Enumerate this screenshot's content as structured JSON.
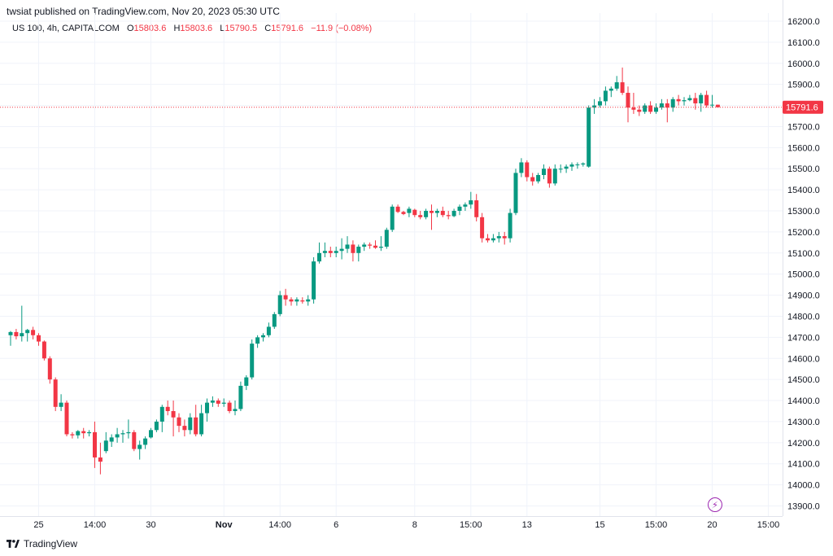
{
  "header": {
    "published": "twsiat published on TradingView.com, Nov 20, 2023 05:30 UTC",
    "symbol": "US 100, 4h, CAPITALCOM",
    "open_label": "O",
    "open": "15803.6",
    "high_label": "H",
    "high": "15803.6",
    "low_label": "L",
    "low": "15790.5",
    "close_label": "C",
    "close": "15791.6",
    "change": "−11.9 (−0.08%)"
  },
  "brand": {
    "name": "TradingView",
    "logo_icon": "tradingview-logo-icon"
  },
  "bolt_icon": "lightning-icon",
  "colors": {
    "up": "#089981",
    "down": "#f23645",
    "grid": "#f0f3fa",
    "price_line": "#f23645",
    "accent": "#9c27b0"
  },
  "chart_data": {
    "type": "candlestick",
    "title": "",
    "xlabel": "",
    "ylabel": "",
    "ylim": [
      13880,
      16220
    ],
    "y_ticks": [
      13900,
      14000,
      14100,
      14200,
      14300,
      14400,
      14500,
      14600,
      14700,
      14800,
      14900,
      15000,
      15100,
      15200,
      15300,
      15400,
      15500,
      15600,
      15700,
      15800,
      15900,
      16000,
      16100,
      16200
    ],
    "y_tick_labels": [
      "13900.0",
      "14000.0",
      "14100.0",
      "14200.0",
      "14300.0",
      "14400.0",
      "14500.0",
      "14600.0",
      "14700.0",
      "14800.0",
      "14900.0",
      "15000.0",
      "15100.0",
      "15200.0",
      "15300.0",
      "15400.0",
      "15500.0",
      "15600.0",
      "15700.0",
      "15800.0",
      "15900.0",
      "16000.0",
      "16100.0",
      "16200.0"
    ],
    "x_ticks": [
      {
        "label": "25",
        "index": 5,
        "bold": false
      },
      {
        "label": "14:00",
        "index": 15,
        "bold": false
      },
      {
        "label": "30",
        "index": 25,
        "bold": false
      },
      {
        "label": "Nov",
        "index": 38,
        "bold": true
      },
      {
        "label": "14:00",
        "index": 48,
        "bold": false
      },
      {
        "label": "6",
        "index": 58,
        "bold": false
      },
      {
        "label": "8",
        "index": 72,
        "bold": false
      },
      {
        "label": "15:00",
        "index": 82,
        "bold": false
      },
      {
        "label": "13",
        "index": 92,
        "bold": false
      },
      {
        "label": "15",
        "index": 105,
        "bold": false
      },
      {
        "label": "15:00",
        "index": 115,
        "bold": false
      },
      {
        "label": "20",
        "index": 125,
        "bold": false
      },
      {
        "label": "15:00",
        "index": 135,
        "bold": false
      }
    ],
    "last_price": 15791.6,
    "last_price_label": "15791.6",
    "candles": [
      [
        14710,
        14730,
        14660,
        14725
      ],
      [
        14725,
        14740,
        14690,
        14705
      ],
      [
        14705,
        14850,
        14680,
        14720
      ],
      [
        14720,
        14740,
        14680,
        14735
      ],
      [
        14735,
        14750,
        14690,
        14710
      ],
      [
        14710,
        14720,
        14660,
        14680
      ],
      [
        14680,
        14685,
        14590,
        14600
      ],
      [
        14600,
        14610,
        14480,
        14500
      ],
      [
        14500,
        14510,
        14350,
        14370
      ],
      [
        14370,
        14430,
        14350,
        14390
      ],
      [
        14390,
        14400,
        14230,
        14240
      ],
      [
        14240,
        14250,
        14220,
        14235
      ],
      [
        14235,
        14260,
        14220,
        14255
      ],
      [
        14255,
        14270,
        14220,
        14245
      ],
      [
        14245,
        14260,
        14230,
        14250
      ],
      [
        14250,
        14300,
        14080,
        14130
      ],
      [
        14130,
        14200,
        14050,
        14110
      ],
      [
        14160,
        14250,
        14150,
        14210
      ],
      [
        14205,
        14240,
        14180,
        14225
      ],
      [
        14225,
        14270,
        14200,
        14240
      ],
      [
        14240,
        14260,
        14200,
        14245
      ],
      [
        14245,
        14310,
        14220,
        14250
      ],
      [
        14250,
        14260,
        14160,
        14170
      ],
      [
        14170,
        14210,
        14120,
        14190
      ],
      [
        14190,
        14230,
        14170,
        14220
      ],
      [
        14225,
        14270,
        14220,
        14260
      ],
      [
        14260,
        14310,
        14250,
        14300
      ],
      [
        14300,
        14380,
        14250,
        14370
      ],
      [
        14370,
        14400,
        14330,
        14350
      ],
      [
        14350,
        14400,
        14230,
        14320
      ],
      [
        14320,
        14340,
        14250,
        14280
      ],
      [
        14280,
        14310,
        14230,
        14260
      ],
      [
        14260,
        14340,
        14240,
        14320
      ],
      [
        14320,
        14380,
        14230,
        14240
      ],
      [
        14240,
        14380,
        14230,
        14340
      ],
      [
        14340,
        14410,
        14300,
        14390
      ],
      [
        14390,
        14420,
        14370,
        14400
      ],
      [
        14400,
        14410,
        14370,
        14385
      ],
      [
        14385,
        14410,
        14370,
        14390
      ],
      [
        14390,
        14400,
        14340,
        14350
      ],
      [
        14350,
        14400,
        14330,
        14360
      ],
      [
        14360,
        14490,
        14350,
        14470
      ],
      [
        14470,
        14520,
        14450,
        14510
      ],
      [
        14510,
        14690,
        14500,
        14670
      ],
      [
        14670,
        14710,
        14650,
        14700
      ],
      [
        14700,
        14720,
        14680,
        14710
      ],
      [
        14710,
        14770,
        14700,
        14750
      ],
      [
        14750,
        14820,
        14740,
        14810
      ],
      [
        14810,
        14920,
        14800,
        14900
      ],
      [
        14900,
        14930,
        14850,
        14880
      ],
      [
        14880,
        14890,
        14850,
        14870
      ],
      [
        14870,
        14890,
        14850,
        14880
      ],
      [
        14875,
        14890,
        14860,
        14870
      ],
      [
        14870,
        14900,
        14850,
        14880
      ],
      [
        14880,
        15080,
        14860,
        15060
      ],
      [
        15060,
        15150,
        15050,
        15100
      ],
      [
        15100,
        15150,
        15080,
        15110
      ],
      [
        15110,
        15130,
        15080,
        15100
      ],
      [
        15100,
        15130,
        15080,
        15110
      ],
      [
        15110,
        15170,
        15070,
        15120
      ],
      [
        15120,
        15180,
        15100,
        15140
      ],
      [
        15140,
        15160,
        15060,
        15100
      ],
      [
        15100,
        15140,
        15060,
        15130
      ],
      [
        15130,
        15150,
        15110,
        15140
      ],
      [
        15140,
        15150,
        15120,
        15135
      ],
      [
        15135,
        15160,
        15120,
        15125
      ],
      [
        15125,
        15180,
        15110,
        15130
      ],
      [
        15130,
        15220,
        15120,
        15210
      ],
      [
        15210,
        15330,
        15200,
        15320
      ],
      [
        15320,
        15330,
        15290,
        15295
      ],
      [
        15295,
        15300,
        15280,
        15285
      ],
      [
        15290,
        15320,
        15270,
        15310
      ],
      [
        15305,
        15310,
        15270,
        15280
      ],
      [
        15280,
        15300,
        15260,
        15270
      ],
      [
        15270,
        15310,
        15260,
        15300
      ],
      [
        15300,
        15330,
        15210,
        15290
      ],
      [
        15290,
        15310,
        15270,
        15300
      ],
      [
        15300,
        15320,
        15270,
        15280
      ],
      [
        15280,
        15300,
        15260,
        15275
      ],
      [
        15275,
        15310,
        15270,
        15300
      ],
      [
        15300,
        15330,
        15280,
        15320
      ],
      [
        15320,
        15340,
        15300,
        15330
      ],
      [
        15330,
        15390,
        15310,
        15350
      ],
      [
        15350,
        15380,
        15250,
        15270
      ],
      [
        15270,
        15290,
        15150,
        15170
      ],
      [
        15170,
        15190,
        15150,
        15160
      ],
      [
        15160,
        15190,
        15150,
        15170
      ],
      [
        15170,
        15200,
        15150,
        15180
      ],
      [
        15180,
        15200,
        15140,
        15170
      ],
      [
        15170,
        15310,
        15150,
        15290
      ],
      [
        15290,
        15500,
        15280,
        15480
      ],
      [
        15480,
        15550,
        15460,
        15530
      ],
      [
        15530,
        15540,
        15440,
        15460
      ],
      [
        15460,
        15480,
        15420,
        15440
      ],
      [
        15440,
        15480,
        15430,
        15470
      ],
      [
        15470,
        15520,
        15450,
        15500
      ],
      [
        15500,
        15510,
        15410,
        15430
      ],
      [
        15430,
        15520,
        15420,
        15500
      ],
      [
        15500,
        15520,
        15480,
        15500
      ],
      [
        15500,
        15520,
        15480,
        15510
      ],
      [
        15510,
        15530,
        15490,
        15520
      ],
      [
        15520,
        15530,
        15500,
        15520
      ],
      [
        15520,
        15530,
        15510,
        15525
      ],
      [
        15510,
        15800,
        15505,
        15790
      ],
      [
        15790,
        15830,
        15760,
        15800
      ],
      [
        15800,
        15840,
        15790,
        15820
      ],
      [
        15820,
        15890,
        15800,
        15870
      ],
      [
        15870,
        15890,
        15840,
        15880
      ],
      [
        15880,
        15940,
        15870,
        15910
      ],
      [
        15910,
        15980,
        15850,
        15860
      ],
      [
        15860,
        15890,
        15720,
        15790
      ],
      [
        15790,
        15860,
        15760,
        15780
      ],
      [
        15780,
        15800,
        15750,
        15770
      ],
      [
        15770,
        15810,
        15760,
        15800
      ],
      [
        15800,
        15820,
        15760,
        15770
      ],
      [
        15770,
        15810,
        15760,
        15790
      ],
      [
        15790,
        15830,
        15780,
        15810
      ],
      [
        15810,
        15830,
        15720,
        15790
      ],
      [
        15790,
        15840,
        15770,
        15830
      ],
      [
        15830,
        15850,
        15800,
        15820
      ],
      [
        15820,
        15840,
        15800,
        15825
      ],
      [
        15825,
        15850,
        15820,
        15835
      ],
      [
        15835,
        15860,
        15780,
        15810
      ],
      [
        15810,
        15860,
        15770,
        15850
      ],
      [
        15850,
        15870,
        15790,
        15800
      ],
      [
        15800,
        15850,
        15790,
        15803.6
      ],
      [
        15803.6,
        15803.6,
        15790.5,
        15791.6
      ]
    ]
  }
}
